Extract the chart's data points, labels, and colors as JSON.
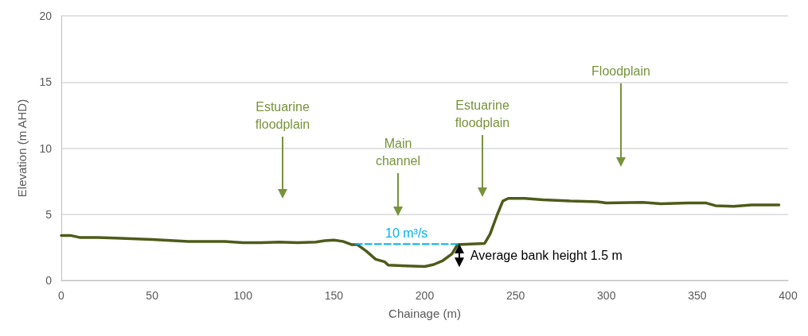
{
  "chart_data": {
    "type": "line",
    "xlabel": "Chainage (m)",
    "ylabel": "Elevation (m AHD)",
    "xlim": [
      0,
      400
    ],
    "xticks": [
      0,
      50,
      100,
      150,
      200,
      250,
      300,
      350,
      400
    ],
    "ylim": [
      0,
      20
    ],
    "yticks": [
      0,
      5,
      10,
      15,
      20
    ],
    "grid": "y",
    "series": [
      {
        "color": "#4e5b1a",
        "line_style": "solid",
        "x": [
          0,
          5,
          10,
          20,
          30,
          50,
          70,
          90,
          100,
          110,
          120,
          130,
          140,
          145,
          150,
          155,
          160,
          163,
          168,
          173,
          178,
          180,
          190,
          200,
          205,
          210,
          215,
          218,
          225,
          233,
          236,
          240,
          243,
          246,
          255,
          265,
          280,
          295,
          300,
          320,
          330,
          345,
          355,
          360,
          370,
          380,
          395
        ],
        "values": [
          3.4,
          3.4,
          3.25,
          3.25,
          3.2,
          3.1,
          2.95,
          2.95,
          2.85,
          2.85,
          2.9,
          2.85,
          2.9,
          3.0,
          3.05,
          2.95,
          2.7,
          2.7,
          2.2,
          1.6,
          1.4,
          1.15,
          1.1,
          1.05,
          1.2,
          1.5,
          2.0,
          2.7,
          2.75,
          2.8,
          3.5,
          5.0,
          6.0,
          6.2,
          6.2,
          6.1,
          6.0,
          5.95,
          5.85,
          5.9,
          5.8,
          5.85,
          5.85,
          5.65,
          5.6,
          5.7,
          5.7
        ]
      },
      {
        "color": "#00b0f0",
        "line_style": "dashed",
        "x": [
          162,
          219
        ],
        "values": [
          2.75,
          2.75
        ]
      }
    ],
    "annotations": [
      "Estuarine floodplain",
      "Main channel",
      "Estuarine floodplain",
      "Floodplain",
      {
        "text": "10 m³/s",
        "x": 190,
        "y": 2.75
      },
      "Average bank height 1.5 m"
    ]
  }
}
